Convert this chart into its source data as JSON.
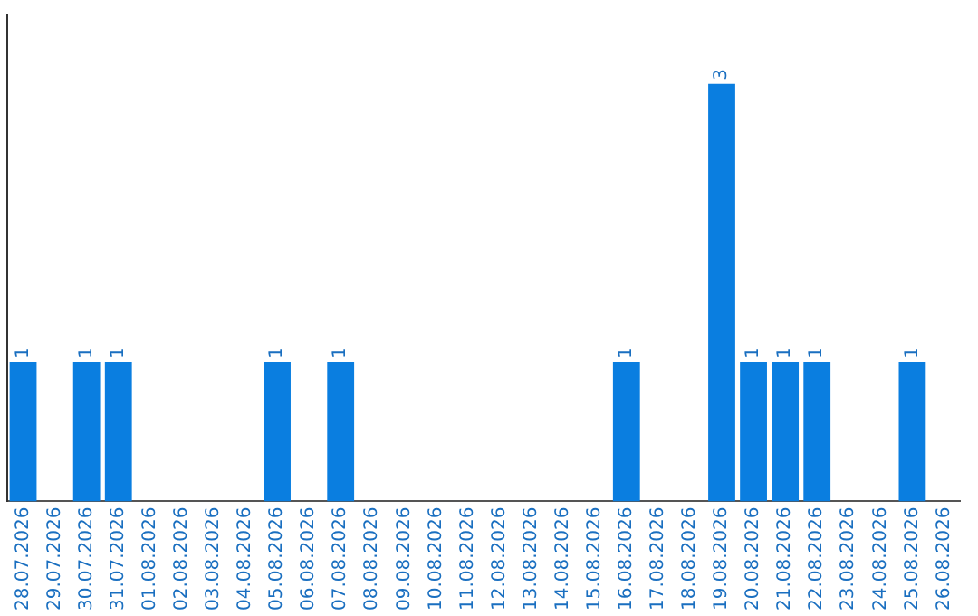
{
  "chart_data": {
    "type": "bar",
    "categories": [
      "28.07.2026",
      "29.07.2026",
      "30.07.2026",
      "31.07.2026",
      "01.08.2026",
      "02.08.2026",
      "03.08.2026",
      "04.08.2026",
      "05.08.2026",
      "06.08.2026",
      "07.08.2026",
      "08.08.2026",
      "09.08.2026",
      "10.08.2026",
      "11.08.2026",
      "12.08.2026",
      "13.08.2026",
      "14.08.2026",
      "15.08.2026",
      "16.08.2026",
      "17.08.2026",
      "18.08.2026",
      "19.08.2026",
      "20.08.2026",
      "21.08.2026",
      "22.08.2026",
      "23.08.2026",
      "24.08.2026",
      "25.08.2026",
      "26.08.2026"
    ],
    "values": [
      1,
      0,
      1,
      1,
      0,
      0,
      0,
      0,
      1,
      0,
      1,
      0,
      0,
      0,
      0,
      0,
      0,
      0,
      0,
      1,
      0,
      0,
      3,
      1,
      1,
      1,
      0,
      0,
      1,
      0
    ],
    "value_labels": [
      "1",
      null,
      "1",
      "1",
      null,
      null,
      null,
      null,
      "1",
      null,
      "1",
      null,
      null,
      null,
      null,
      null,
      null,
      null,
      null,
      "1",
      null,
      null,
      "3",
      "1",
      "1",
      "1",
      null,
      null,
      "1",
      null
    ],
    "color": "#0a7ee0",
    "tick_labels": "x",
    "grid": false,
    "legend": false
  }
}
